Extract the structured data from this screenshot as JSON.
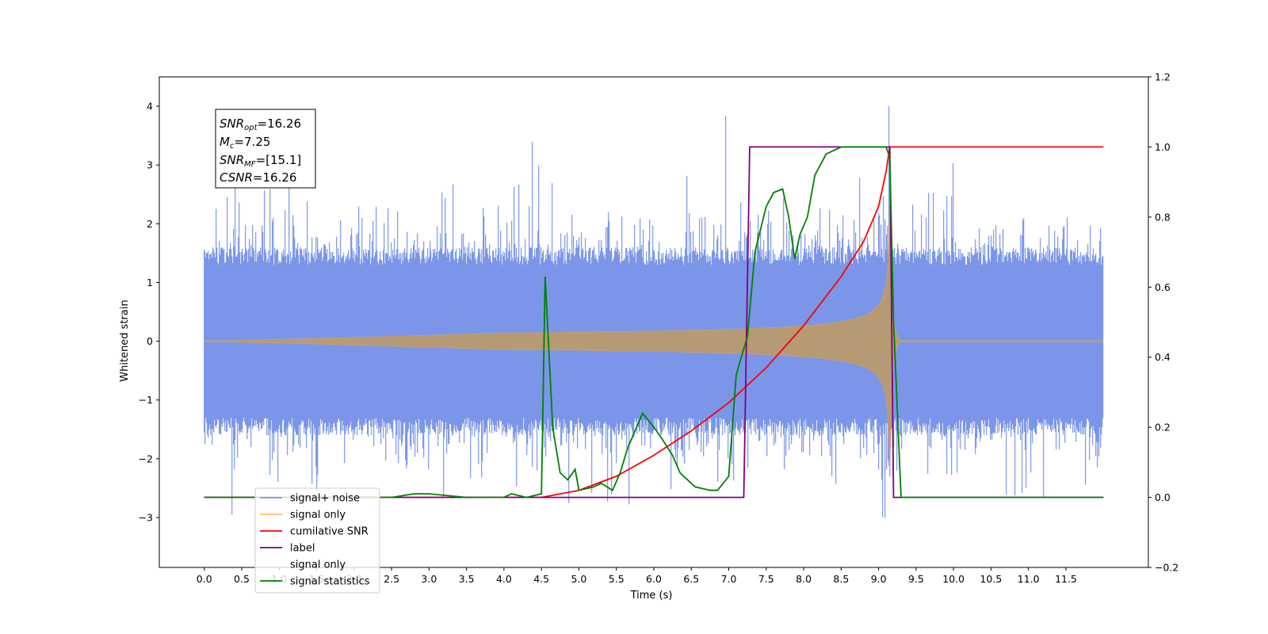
{
  "chart_data": {
    "type": "line",
    "title": "",
    "xlabel": "Time (s)",
    "ylabel": "Whitened strain",
    "xlim": [
      -0.6,
      12.6
    ],
    "ylim": [
      -3.85,
      4.5
    ],
    "y2lim": [
      -0.2,
      1.2
    ],
    "grid": false,
    "legend_position": "lower-left",
    "x_ticks": [
      "0.0",
      "0.5",
      "1.0",
      "1.5",
      "2.0",
      "2.5",
      "3.0",
      "3.5",
      "4.0",
      "4.5",
      "5.0",
      "5.5",
      "6.0",
      "6.5",
      "7.0",
      "7.5",
      "8.0",
      "8.5",
      "9.0",
      "9.5",
      "10.0",
      "10.5",
      "11.0",
      "11.5"
    ],
    "y_ticks": [
      "−3",
      "−2",
      "−1",
      "0",
      "1",
      "2",
      "3",
      "4"
    ],
    "y2_ticks": [
      "−0.2",
      "0.0",
      "0.2",
      "0.4",
      "0.6",
      "0.8",
      "1.0",
      "1.2"
    ],
    "annotation": {
      "snr_opt": {
        "label": "SNR",
        "sub": "opt",
        "value": "=16.26"
      },
      "mc": {
        "label": "M",
        "sub": "c",
        "value": "=7.25"
      },
      "snr_mf": {
        "label": "SNR",
        "sub": "MF",
        "value": "=[15.1]"
      },
      "csnr": {
        "label": "CSNR",
        "sub": "",
        "value": "=16.26"
      }
    },
    "series": [
      {
        "name": "signal+ noise",
        "color": "#7b96e8",
        "axis": "left",
        "kind": "noise",
        "x_range": [
          0,
          12
        ],
        "amplitude": 2.2
      },
      {
        "name": "signal only",
        "color": "#c8a070",
        "axis": "left",
        "kind": "chirp",
        "x_range": [
          0,
          12
        ],
        "merger_time": 9.15,
        "peak_amplitude": 2.3
      },
      {
        "name": "cumilative SNR",
        "color": "#ff0000",
        "axis": "right",
        "x": [
          0,
          4.5,
          5.0,
          5.5,
          6.0,
          6.5,
          7.0,
          7.5,
          8.0,
          8.5,
          8.8,
          9.0,
          9.1,
          9.15,
          12.0
        ],
        "y": [
          0,
          0,
          0.02,
          0.06,
          0.12,
          0.19,
          0.27,
          0.37,
          0.49,
          0.63,
          0.73,
          0.83,
          0.93,
          1.0,
          1.0
        ]
      },
      {
        "name": "label",
        "color": "#800080",
        "axis": "right",
        "x": [
          0,
          7.2,
          7.28,
          9.15,
          9.2,
          12.0
        ],
        "y": [
          0,
          0,
          1,
          1,
          0,
          0
        ]
      },
      {
        "name": "signal only",
        "color": "#ffffff",
        "axis": "none",
        "hidden": true,
        "x": [],
        "y": []
      },
      {
        "name": "signal statistics",
        "color": "#008000",
        "axis": "right",
        "x": [
          0,
          2.5,
          2.8,
          3.0,
          3.5,
          4.0,
          4.1,
          4.3,
          4.5,
          4.55,
          4.65,
          4.75,
          4.85,
          4.95,
          5.0,
          5.2,
          5.3,
          5.45,
          5.55,
          5.65,
          5.85,
          6.0,
          6.1,
          6.25,
          6.35,
          6.55,
          6.75,
          6.85,
          7.0,
          7.1,
          7.25,
          7.35,
          7.5,
          7.6,
          7.72,
          7.8,
          7.88,
          7.95,
          8.05,
          8.15,
          8.3,
          8.5,
          8.7,
          9.0,
          9.1,
          9.15,
          9.2,
          9.3,
          9.5,
          11.0,
          12.0
        ],
        "y": [
          0,
          0,
          0.01,
          0.01,
          0.0,
          0.0,
          0.01,
          0.0,
          0.01,
          0.63,
          0.2,
          0.07,
          0.05,
          0.08,
          0.02,
          0.03,
          0.04,
          0.02,
          0.07,
          0.14,
          0.24,
          0.2,
          0.17,
          0.12,
          0.07,
          0.03,
          0.02,
          0.02,
          0.06,
          0.35,
          0.46,
          0.7,
          0.83,
          0.87,
          0.88,
          0.8,
          0.68,
          0.75,
          0.8,
          0.92,
          0.98,
          1.0,
          1.0,
          1.0,
          1.0,
          0.97,
          0.5,
          0.0,
          0.0,
          0.0,
          0.0
        ]
      }
    ]
  }
}
